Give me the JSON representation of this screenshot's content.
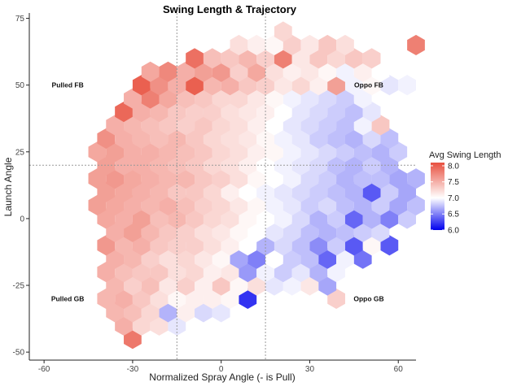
{
  "chart_data": {
    "type": "heatmap",
    "subtype": "hexbin",
    "title": "Swing Length & Trajectory",
    "xlabel": "Normalized Spray Angle (- is Pull)",
    "ylabel": "Launch Angle",
    "xlim": [
      -65,
      66
    ],
    "ylim": [
      -53,
      77
    ],
    "x_ticks": [
      -60,
      -30,
      0,
      30,
      60
    ],
    "y_ticks": [
      75,
      50,
      25,
      0,
      -25,
      -50
    ],
    "reference_lines": {
      "vertical": [
        -15,
        15
      ],
      "horizontal": [
        20
      ]
    },
    "grid": false,
    "legend": {
      "title": "Avg Swing Length",
      "placement": "right",
      "ticks": [
        8.0,
        7.5,
        7.0,
        6.5,
        6.0
      ],
      "tick_labels": [
        "8.0",
        "7.5",
        "7.0",
        "6.5",
        "6.0"
      ],
      "range": [
        6.0,
        8.1
      ],
      "midpoint": 7.0,
      "color_high": "#e8503f",
      "color_mid": "#ffffff",
      "color_low": "#0000ee"
    },
    "annotations": [
      {
        "text": "Pulled FB",
        "x": -52,
        "y": 50
      },
      {
        "text": "Oppo FB",
        "x": 50,
        "y": 50
      },
      {
        "text": "Pulled GB",
        "x": -52,
        "y": -30
      },
      {
        "text": "Oppo GB",
        "x": 50,
        "y": -30
      }
    ],
    "hex_width": 6,
    "hex_row_spacing": 5,
    "hex_rows": [
      {
        "y": -45,
        "x0": -30,
        "values": [
          7.85
        ]
      },
      {
        "y": -40,
        "x0": -33,
        "values": [
          7.5,
          7.25,
          7.2,
          6.9
        ]
      },
      {
        "y": -35,
        "x0": -36,
        "values": [
          7.45,
          7.4,
          7.25,
          6.7,
          7.1,
          6.85,
          6.9
        ]
      },
      {
        "y": -30,
        "x0": -39,
        "values": [
          7.45,
          7.5,
          7.35,
          7.2,
          7.05,
          7.1,
          7.1,
          7.05,
          6.2,
          null,
          null,
          null,
          null,
          7.3
        ]
      },
      {
        "y": -25,
        "x0": -36,
        "values": [
          7.45,
          7.3,
          7.4,
          7.15,
          7.3,
          7.1,
          7.35,
          7.05,
          7.2,
          6.9,
          6.95,
          7.15,
          6.65
        ]
      },
      {
        "y": -20,
        "x0": -39,
        "values": [
          7.5,
          7.4,
          7.35,
          7.35,
          7.2,
          7.25,
          7.1,
          7.15,
          6.6,
          6.95,
          6.8,
          6.9,
          6.7,
          6.95
        ]
      },
      {
        "y": -15,
        "x0": -36,
        "values": [
          7.5,
          7.45,
          7.3,
          7.2,
          7.25,
          7.15,
          7.05,
          6.65,
          6.5,
          7.0,
          6.8,
          6.75,
          6.4,
          6.95,
          6.45
        ]
      },
      {
        "y": -10,
        "x0": -39,
        "values": [
          7.65,
          7.45,
          7.5,
          7.35,
          7.3,
          7.3,
          7.2,
          7.1,
          7.0,
          6.7,
          6.85,
          6.75,
          6.55,
          6.8,
          6.35,
          7.05,
          6.35
        ]
      },
      {
        "y": -5,
        "x0": -36,
        "values": [
          7.5,
          7.6,
          7.45,
          7.35,
          7.3,
          7.2,
          7.15,
          7.05,
          7.0,
          6.9,
          6.85,
          6.75,
          6.7,
          6.75,
          6.8,
          6.85
        ]
      },
      {
        "y": 0,
        "x0": -39,
        "values": [
          7.55,
          7.5,
          7.6,
          7.4,
          7.45,
          7.35,
          7.25,
          7.2,
          7.05,
          7.0,
          6.95,
          6.85,
          6.7,
          6.8,
          6.4,
          6.7,
          6.5,
          6.8
        ]
      },
      {
        "y": 5,
        "x0": -42,
        "values": [
          7.6,
          7.55,
          7.5,
          7.45,
          7.5,
          7.4,
          7.3,
          7.25,
          7.15,
          7.05,
          6.95,
          6.9,
          6.8,
          6.85,
          6.75,
          6.7,
          6.8,
          6.65,
          6.75
        ]
      },
      {
        "y": 10,
        "x0": -39,
        "values": [
          7.6,
          7.55,
          7.5,
          7.45,
          7.35,
          7.35,
          7.25,
          7.1,
          7.0,
          6.95,
          6.9,
          6.85,
          6.8,
          6.75,
          6.7,
          6.35,
          6.8,
          6.65
        ]
      },
      {
        "y": 15,
        "x0": -42,
        "values": [
          7.6,
          7.65,
          7.55,
          7.5,
          7.45,
          7.45,
          7.35,
          7.3,
          7.2,
          7.05,
          7.0,
          6.95,
          6.85,
          6.8,
          6.7,
          6.75,
          6.75,
          6.65,
          6.7
        ]
      },
      {
        "y": 20,
        "x0": -39,
        "values": [
          7.6,
          7.5,
          7.5,
          7.45,
          7.4,
          7.35,
          7.25,
          7.2,
          7.1,
          7.0,
          6.95,
          6.9,
          6.85,
          6.75,
          6.7,
          6.8,
          6.7
        ]
      },
      {
        "y": 25,
        "x0": -42,
        "values": [
          7.55,
          7.6,
          7.5,
          7.5,
          7.45,
          7.4,
          7.35,
          7.25,
          7.2,
          7.1,
          7.05,
          6.95,
          6.9,
          6.85,
          6.8,
          6.75,
          6.7,
          6.8
        ]
      },
      {
        "y": 30,
        "x0": -39,
        "values": [
          7.7,
          7.5,
          7.45,
          7.4,
          7.45,
          7.35,
          7.25,
          7.2,
          7.15,
          7.05,
          6.95,
          6.9,
          6.8,
          6.75,
          6.7,
          6.85,
          6.75
        ]
      },
      {
        "y": 35,
        "x0": -36,
        "values": [
          7.5,
          7.45,
          7.4,
          7.35,
          7.3,
          7.35,
          7.25,
          7.2,
          7.1,
          7.0,
          6.9,
          6.85,
          6.8,
          6.75,
          6.95,
          7.35
        ]
      },
      {
        "y": 40,
        "x0": -33,
        "values": [
          7.95,
          7.5,
          7.45,
          7.35,
          7.3,
          7.3,
          7.2,
          7.15,
          7.1,
          7.0,
          6.9,
          6.85,
          6.8,
          6.75,
          6.9
        ]
      },
      {
        "y": 45,
        "x0": -30,
        "values": [
          7.5,
          7.8,
          7.55,
          7.4,
          7.35,
          7.25,
          7.25,
          7.15,
          7.05,
          6.95,
          6.9,
          6.85,
          6.8,
          6.95
        ]
      },
      {
        "y": 50,
        "x0": -27,
        "values": [
          8.0,
          7.7,
          7.5,
          8.0,
          7.45,
          7.5,
          7.35,
          7.3,
          7.15,
          7.25,
          7.1,
          7.6,
          6.95,
          7.05,
          6.9,
          6.95
        ]
      },
      {
        "y": 55,
        "x0": -24,
        "values": [
          7.55,
          7.75,
          7.5,
          7.6,
          7.65,
          7.3,
          7.55,
          7.2,
          7.1,
          7.15,
          7.05,
          6.95,
          7.1,
          7.0
        ]
      },
      {
        "y": 60,
        "x0": -9,
        "values": [
          7.9,
          7.4,
          7.35,
          7.45,
          7.3,
          7.8,
          7.15,
          7.35,
          7.25,
          7.35,
          7.3
        ]
      },
      {
        "y": 65,
        "x0": 6,
        "values": [
          7.2,
          7.1,
          7.05,
          7.3,
          7.15,
          7.35,
          7.2,
          null,
          null,
          null,
          7.8
        ]
      },
      {
        "y": 70,
        "x0": 21,
        "values": [
          7.25
        ]
      }
    ]
  }
}
